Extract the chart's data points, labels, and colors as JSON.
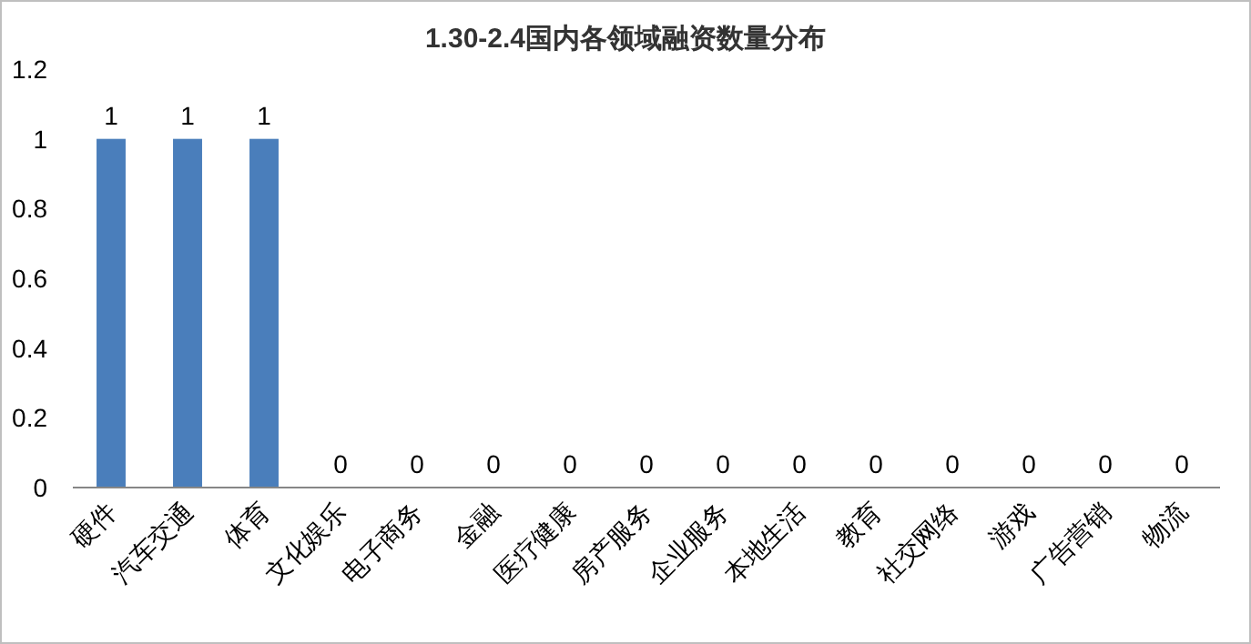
{
  "chart_data": {
    "type": "bar",
    "title": "1.30-2.4国内各领域融资数量分布",
    "categories": [
      "硬件",
      "汽车交通",
      "体育",
      "文化娱乐",
      "电子商务",
      "金融",
      "医疗健康",
      "房产服务",
      "企业服务",
      "本地生活",
      "教育",
      "社交网络",
      "游戏",
      "广告营销",
      "物流"
    ],
    "values": [
      1,
      1,
      1,
      0,
      0,
      0,
      0,
      0,
      0,
      0,
      0,
      0,
      0,
      0,
      0
    ],
    "color": "#4a7ebb",
    "ylim": [
      0,
      1.2
    ],
    "yticks": [
      0,
      0.2,
      0.4,
      0.6,
      0.8,
      1,
      1.2
    ],
    "data_labels": true
  }
}
